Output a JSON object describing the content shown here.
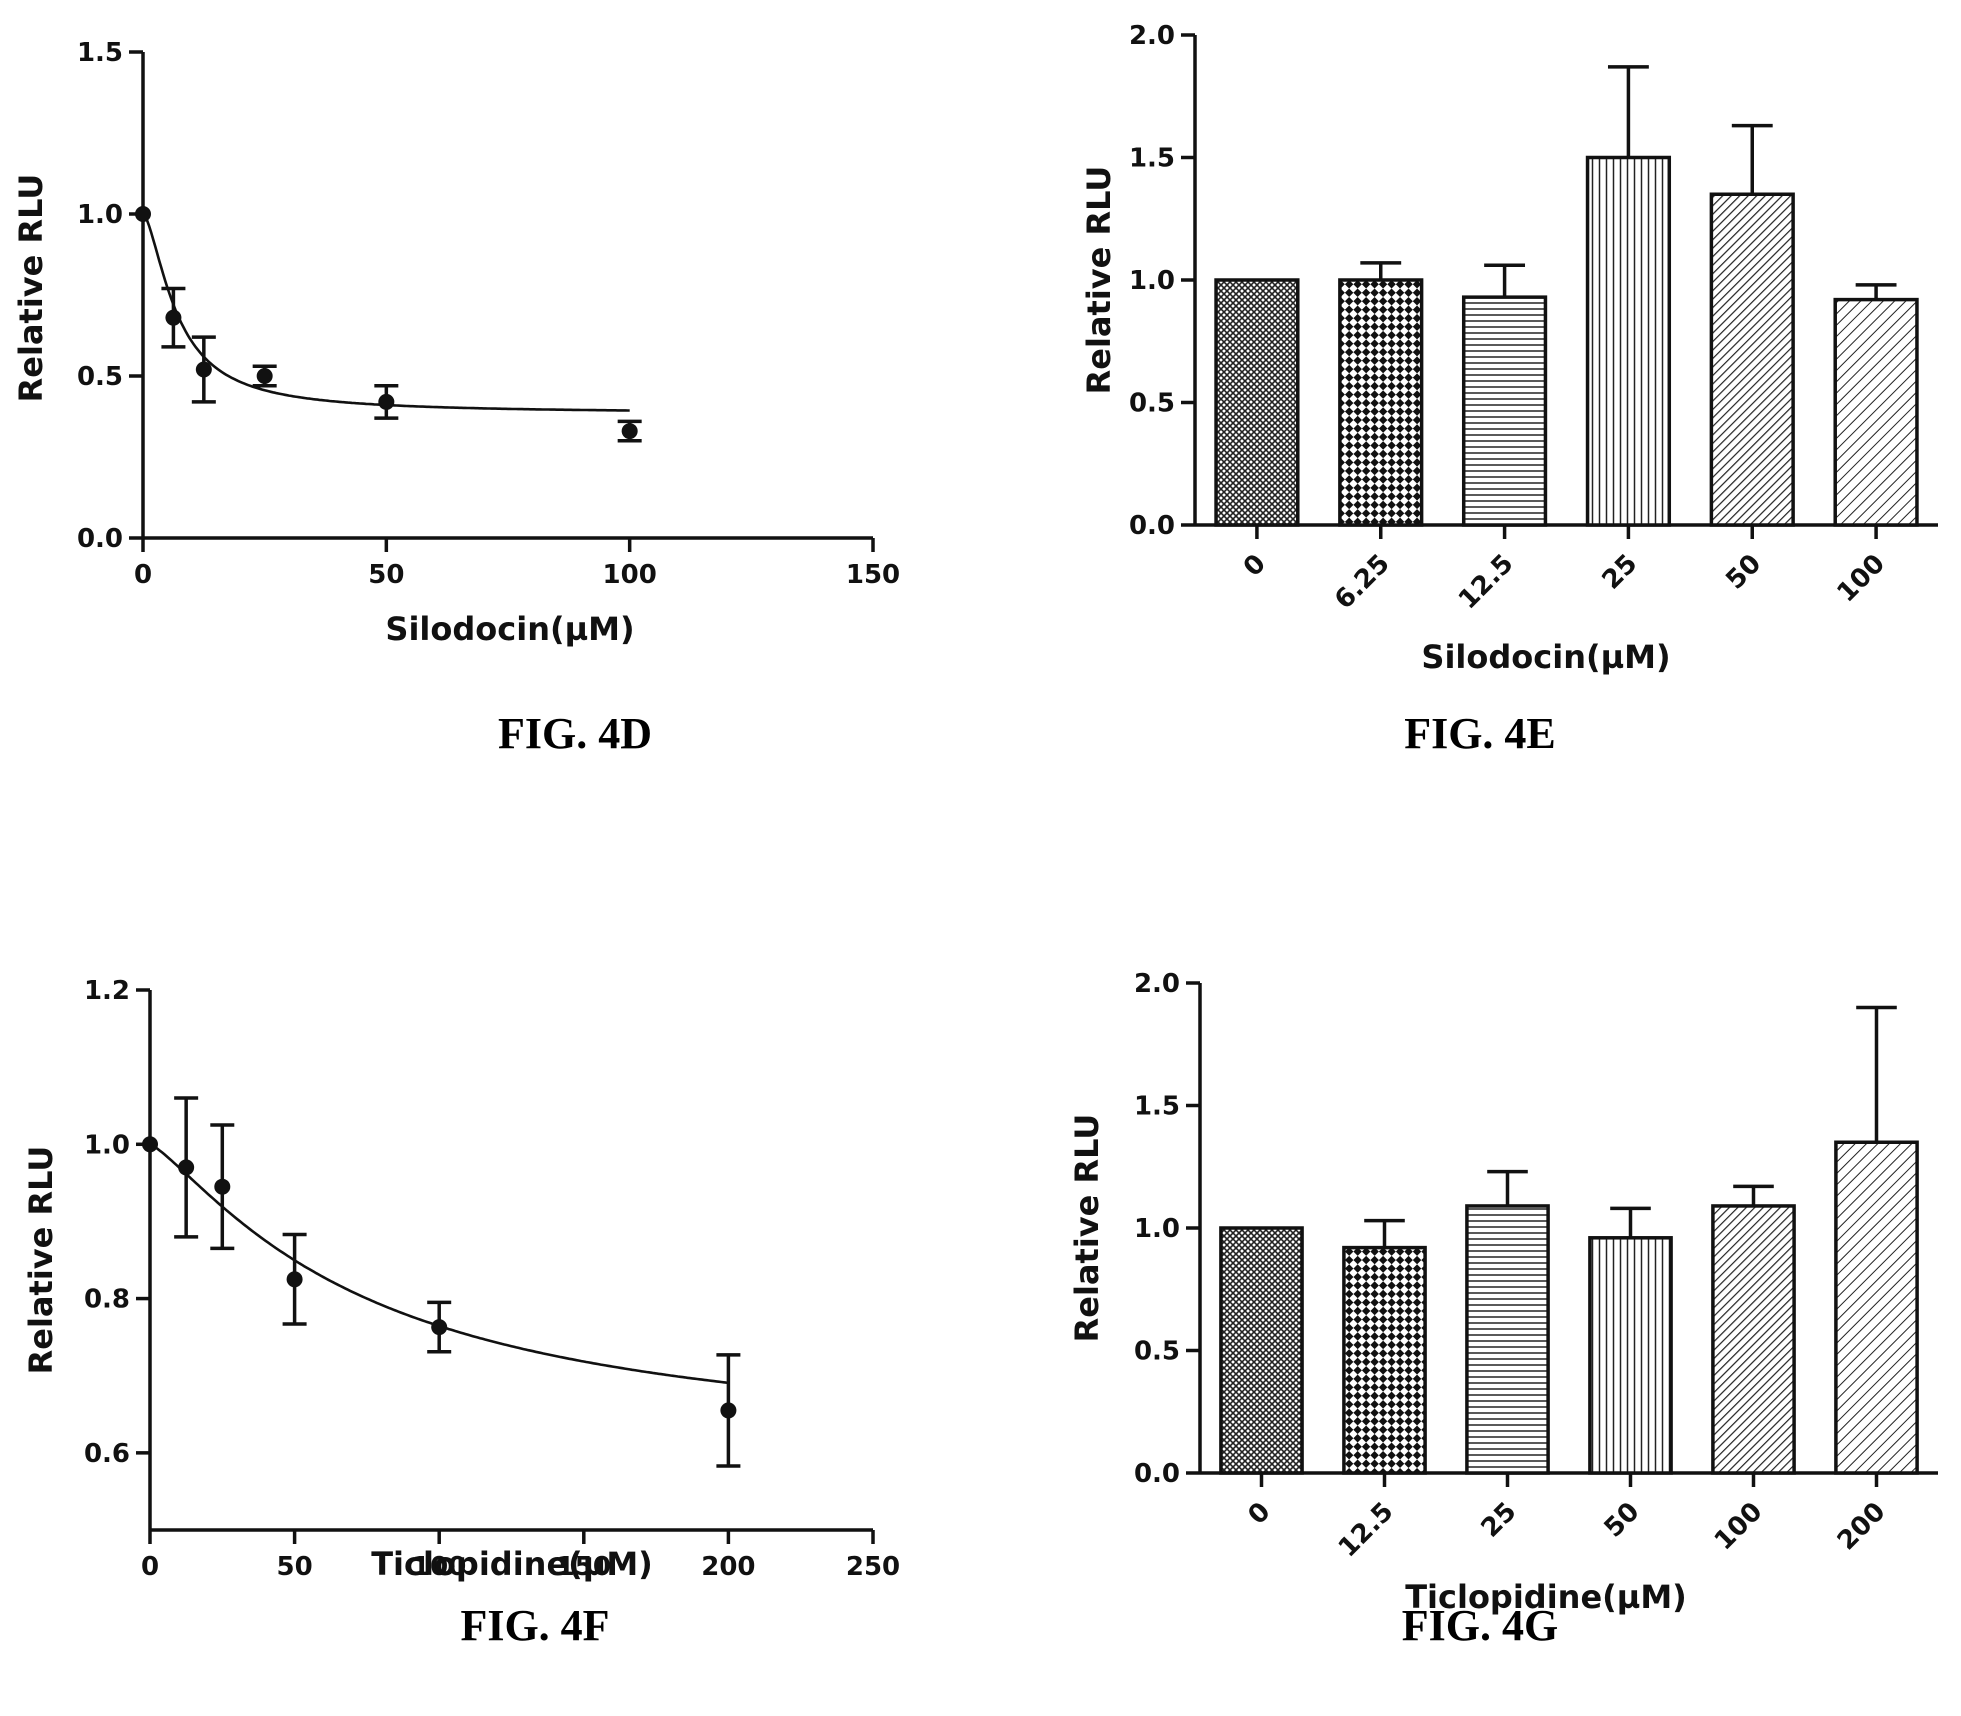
{
  "chart_data": [
    {
      "id": "4D",
      "type": "scatter",
      "caption": "FIG. 4D",
      "xlabel": "Silodocin(µM)",
      "ylabel": "Relative RLU",
      "xlim": [
        0,
        150
      ],
      "ylim": [
        0,
        1.5
      ],
      "xticks": [
        "0",
        "50",
        "100",
        "150"
      ],
      "yticks": [
        "0.0",
        "0.5",
        "1.0",
        "1.5"
      ],
      "grid": false,
      "fit_curve": true,
      "points": [
        {
          "x": 0,
          "y": 1.0,
          "err": 0
        },
        {
          "x": 6.25,
          "y": 0.68,
          "err": 0.09
        },
        {
          "x": 12.5,
          "y": 0.52,
          "err": 0.1
        },
        {
          "x": 25,
          "y": 0.5,
          "err": 0.03
        },
        {
          "x": 50,
          "y": 0.42,
          "err": 0.05
        },
        {
          "x": 100,
          "y": 0.33,
          "err": 0.03
        }
      ],
      "curve": {
        "bottom": 0.385,
        "top": 1.0,
        "ic50": 7.0,
        "hill": 1.6
      }
    },
    {
      "id": "4E",
      "type": "bar",
      "caption": "FIG. 4E",
      "xlabel": "Silodocin(µM)",
      "ylabel": "Relative RLU",
      "ylim": [
        0,
        2.0
      ],
      "yticks": [
        "0.0",
        "0.5",
        "1.0",
        "1.5",
        "2.0"
      ],
      "grid": false,
      "categories": [
        "0",
        "6.25",
        "12.5",
        "25",
        "50",
        "100"
      ],
      "values": [
        1.0,
        1.0,
        0.93,
        1.5,
        1.35,
        0.92
      ],
      "errors": [
        0,
        0.07,
        0.13,
        0.37,
        0.28,
        0.06
      ],
      "patterns": [
        "fine-crosshatch",
        "checker",
        "horizontal",
        "vertical",
        "diagonal-dense",
        "diagonal"
      ]
    },
    {
      "id": "4F",
      "type": "scatter",
      "caption": "FIG. 4F",
      "xlabel": "Ticlopidine(µM)",
      "ylabel": "Relative RLU",
      "xlim": [
        0,
        250
      ],
      "ylim": [
        0.5,
        1.2
      ],
      "xticks": [
        "0",
        "50",
        "100",
        "150",
        "200",
        "250"
      ],
      "yticks": [
        "0.6",
        "0.8",
        "1.0",
        "1.2"
      ],
      "grid": false,
      "fit_curve": true,
      "points": [
        {
          "x": 0,
          "y": 1.0,
          "err": 0
        },
        {
          "x": 12.5,
          "y": 0.97,
          "err": 0.09
        },
        {
          "x": 25,
          "y": 0.945,
          "err": 0.08
        },
        {
          "x": 50,
          "y": 0.825,
          "err": 0.058
        },
        {
          "x": 100,
          "y": 0.763,
          "err": 0.032
        },
        {
          "x": 200,
          "y": 0.655,
          "err": 0.072
        }
      ],
      "curve": {
        "bottom": 0.6,
        "top": 1.0,
        "ic50": 75.0,
        "hill": 1.25
      }
    },
    {
      "id": "4G",
      "type": "bar",
      "caption": "FIG. 4G",
      "xlabel": "Ticlopidine(µM)",
      "ylabel": "Relative RLU",
      "ylim": [
        0,
        2.0
      ],
      "yticks": [
        "0.0",
        "0.5",
        "1.0",
        "1.5",
        "2.0"
      ],
      "grid": false,
      "categories": [
        "0",
        "12.5",
        "25",
        "50",
        "100",
        "200"
      ],
      "values": [
        1.0,
        0.92,
        1.09,
        0.96,
        1.09,
        1.35
      ],
      "errors": [
        0,
        0.11,
        0.14,
        0.12,
        0.08,
        0.55
      ],
      "patterns": [
        "fine-crosshatch",
        "checker",
        "horizontal",
        "vertical",
        "diagonal-dense",
        "diagonal"
      ]
    }
  ]
}
